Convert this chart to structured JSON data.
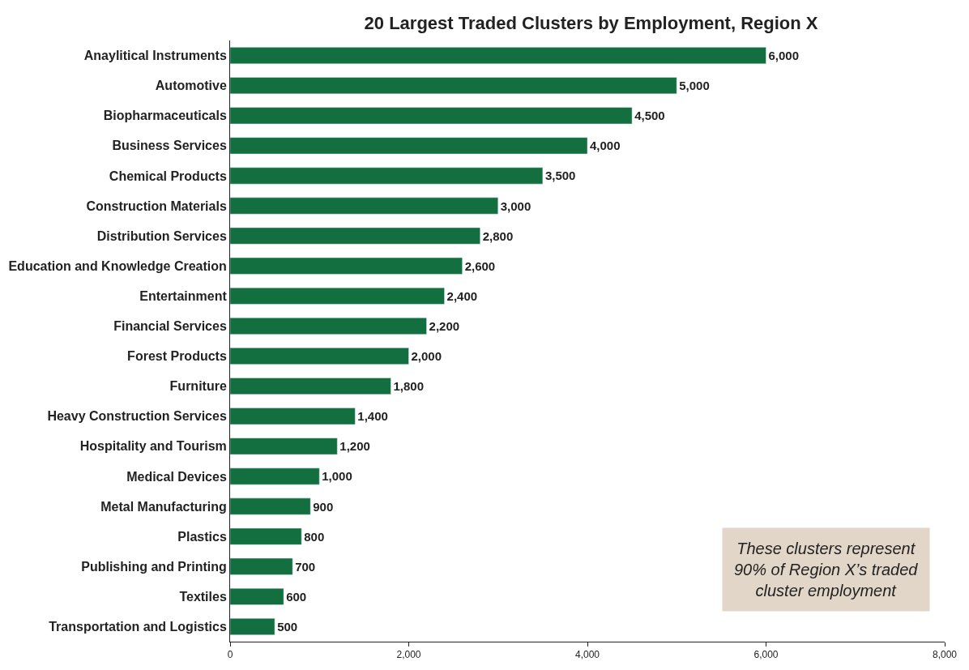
{
  "chart_data": {
    "type": "bar",
    "orientation": "horizontal",
    "title": "20 Largest Traded Clusters by Employment, Region X",
    "categories": [
      "Anaylitical Instruments",
      "Automotive",
      "Biopharmaceuticals",
      "Business Services",
      "Chemical Products",
      "Construction Materials",
      "Distribution Services",
      "Education and Knowledge Creation",
      "Entertainment",
      "Financial Services",
      "Forest Products",
      "Furniture",
      "Heavy Construction Services",
      "Hospitality and Tourism",
      "Medical Devices",
      "Metal Manufacturing",
      "Plastics",
      "Publishing and Printing",
      "Textiles",
      "Transportation and Logistics"
    ],
    "values": [
      6000,
      5000,
      4500,
      4000,
      3500,
      3000,
      2800,
      2600,
      2400,
      2200,
      2000,
      1800,
      1400,
      1200,
      1000,
      900,
      800,
      700,
      600,
      500
    ],
    "color": "#136f3f",
    "xlim": [
      0,
      8000
    ],
    "xticks": [
      {
        "value": 0,
        "label": "0"
      },
      {
        "value": 2000,
        "label": "2,000"
      },
      {
        "value": 4000,
        "label": "4,000"
      },
      {
        "value": 6000,
        "label": "6,000"
      },
      {
        "value": 8000,
        "label": "8,000"
      }
    ],
    "value_labels": [
      "6,000",
      "5,000",
      "4,500",
      "4,000",
      "3,500",
      "3,000",
      "2,800",
      "2,600",
      "2,400",
      "2,200",
      "2,000",
      "1,800",
      "1,400",
      "1,200",
      "1,000",
      "900",
      "800",
      "700",
      "600",
      "500"
    ],
    "annotations": [
      "These clusters represent 90% of Region X’s traded cluster employment"
    ]
  }
}
